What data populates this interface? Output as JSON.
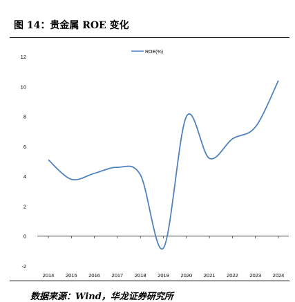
{
  "figure": {
    "title": "图 14：贵金属 ROE 变化",
    "source": "数据来源：Wind，华龙证券研究所"
  },
  "colors": {
    "series": "#4f81bd",
    "axis": "#000000"
  },
  "chart_data": {
    "type": "line",
    "x": [
      2014,
      2015,
      2016,
      2017,
      2018,
      2019,
      2020,
      2021,
      2022,
      2023,
      2024
    ],
    "series": [
      {
        "name": "ROE(%)",
        "values": [
          5.1,
          3.8,
          4.2,
          4.6,
          4.1,
          -0.8,
          8.0,
          5.2,
          6.5,
          7.3,
          10.4
        ]
      }
    ],
    "title": "",
    "xlabel": "",
    "ylabel": "",
    "ylim": [
      -2,
      12
    ],
    "yticks": [
      -2,
      0,
      2,
      4,
      6,
      8,
      10,
      12
    ],
    "grid": false,
    "legend": "top-center",
    "smooth": true
  }
}
